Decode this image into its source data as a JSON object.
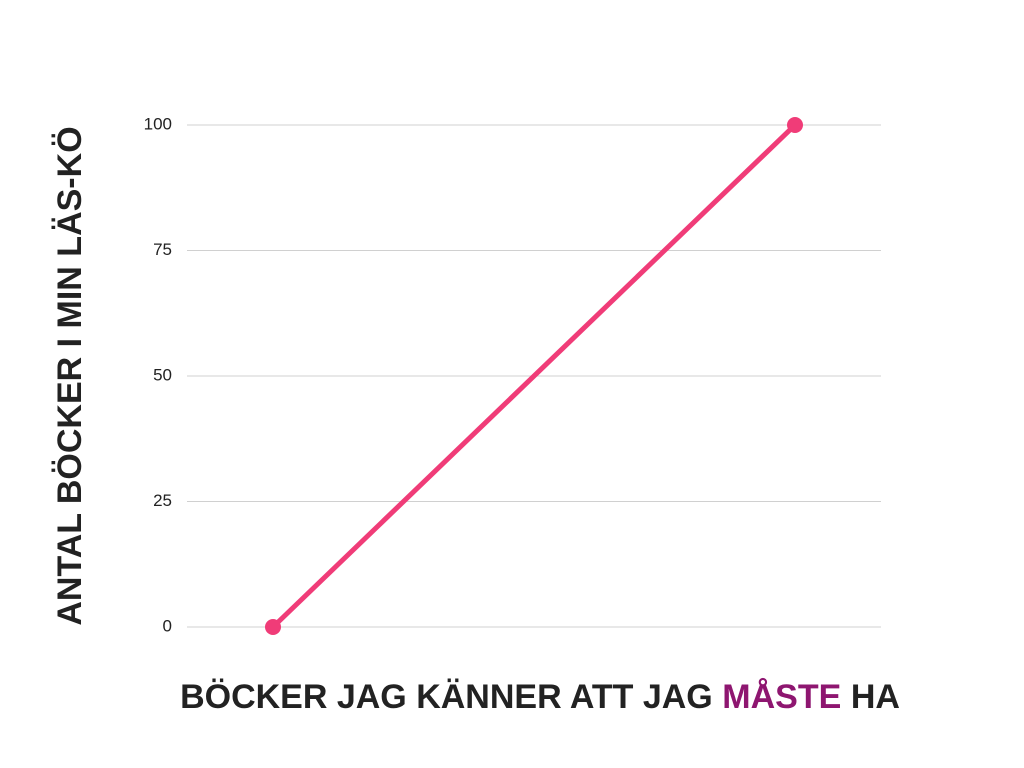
{
  "chart_data": {
    "type": "line",
    "categories": [
      null,
      null
    ],
    "series": [
      {
        "name": null,
        "color": "#f03c78",
        "values": [
          0,
          100
        ]
      }
    ],
    "ylim": [
      0,
      100
    ],
    "yticks": [
      0,
      25,
      50,
      75,
      100
    ],
    "grid": true,
    "ylabel": "ANTAL BÖCKER I MIN LÄS-KÖ",
    "xlabel": [
      "BÖCKER JAG KÄNNER ATT JAG",
      "MÅSTE",
      "HA"
    ],
    "xlabel_highlight_color": "#8e1670"
  }
}
